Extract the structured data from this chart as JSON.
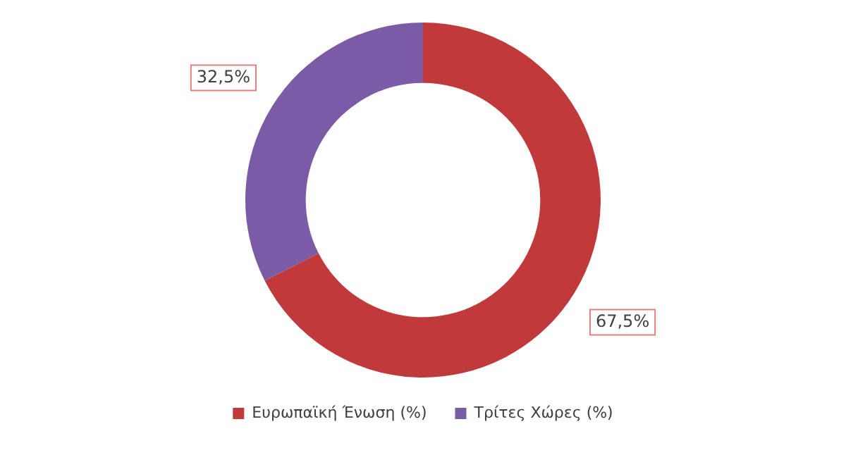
{
  "chart_data": {
    "type": "donut",
    "categories": [
      "Ευρωπαϊκή Ένωση (%)",
      "Τρίτες Χώρες (%)"
    ],
    "values": [
      67.5,
      32.5
    ],
    "colors": [
      "#c0393b",
      "#7b5aa6"
    ],
    "value_labels": [
      "67,5%",
      "32,5%"
    ],
    "legend": "bottom"
  }
}
